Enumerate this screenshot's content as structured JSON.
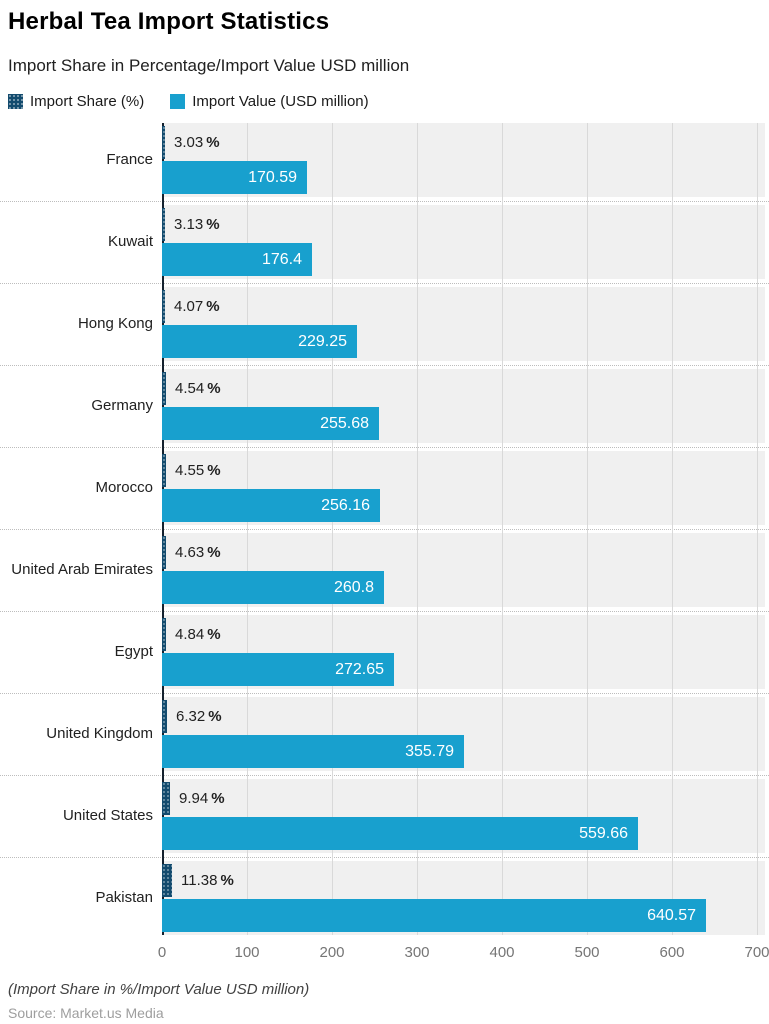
{
  "title": "Herbal Tea Import Statistics",
  "subtitle": "Import Share in Percentage/Import Value USD million",
  "legend": [
    {
      "label": "Import Share (%)",
      "color": "#134b6e"
    },
    {
      "label": "Import Value (USD million)",
      "color": "#18a0ce"
    }
  ],
  "footnote": "(Import Share in %/Import Value USD million)",
  "source": "Source: Market.us Media",
  "colors": {
    "share_bar": "#134b6e",
    "value_bar": "#18a0ce",
    "band_background": "#f0f0f0",
    "gridline": "#d9d9d9",
    "axis_line": "#14212e"
  },
  "chart_data": {
    "type": "bar",
    "orientation": "horizontal",
    "title": "Herbal Tea Import Statistics",
    "subtitle": "Import Share in Percentage/Import Value USD million",
    "categories": [
      "France",
      "Kuwait",
      "Hong Kong",
      "Germany",
      "Morocco",
      "United Arab Emirates",
      "Egypt",
      "United Kingdom",
      "United States",
      "Pakistan"
    ],
    "series": [
      {
        "name": "Import Share (%)",
        "unit": "%",
        "values": [
          3.03,
          3.13,
          4.07,
          4.54,
          4.55,
          4.63,
          4.84,
          6.32,
          9.94,
          11.38
        ]
      },
      {
        "name": "Import Value (USD million)",
        "unit": "USD million",
        "values": [
          170.59,
          176.4,
          229.25,
          255.68,
          256.16,
          260.8,
          272.65,
          355.79,
          559.66,
          640.57
        ]
      }
    ],
    "xlim": [
      0,
      700
    ],
    "xticks": [
      0,
      100,
      200,
      300,
      400,
      500,
      600,
      700
    ],
    "grid": true,
    "legend_position": "top"
  }
}
